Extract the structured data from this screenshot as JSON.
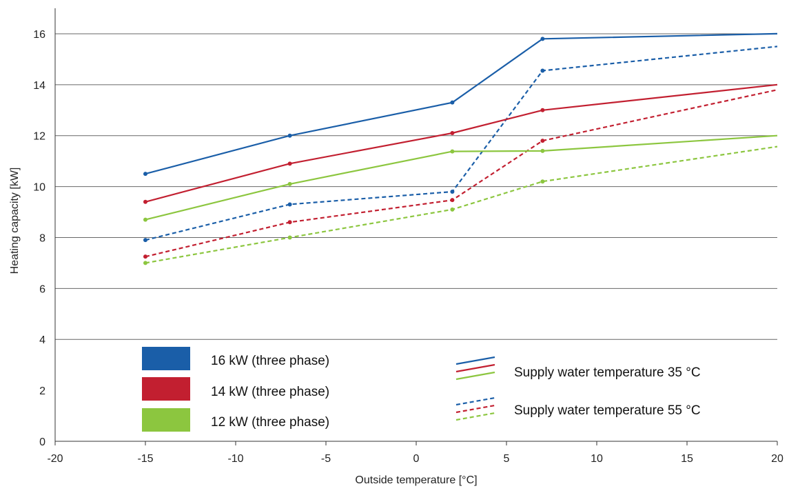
{
  "chart_data": {
    "type": "line",
    "title": "",
    "xlabel": "Outside temperature [°C]",
    "ylabel": "Heating capacity [kW]",
    "xlim": [
      -20,
      20
    ],
    "ylim": [
      0,
      17
    ],
    "xticks": [
      -20,
      -15,
      -10,
      -5,
      0,
      5,
      10,
      15,
      20
    ],
    "yticks": [
      0,
      2,
      4,
      6,
      8,
      10,
      12,
      14,
      16
    ],
    "grid": "horizontal at 4, 6, 8, 10, 12, 14, 16",
    "legend_placement": "bottom",
    "models": [
      {
        "label": "16 kW (three phase)",
        "color": "#1a5ea8"
      },
      {
        "label": "14 kW (three phase)",
        "color": "#c21f30"
      },
      {
        "label": "12 kW (three phase)",
        "color": "#8cc63f"
      }
    ],
    "line_styles": [
      {
        "label": "Supply water temperature 35 °C",
        "dash": "solid"
      },
      {
        "label": "Supply water temperature 55 °C",
        "dash": "dashed"
      }
    ],
    "series": [
      {
        "model": 0,
        "style": 0,
        "points": [
          [
            -15,
            10.5
          ],
          [
            -7,
            12.0
          ],
          [
            2,
            13.3
          ],
          [
            7,
            15.8
          ],
          [
            20,
            16.0
          ]
        ]
      },
      {
        "model": 1,
        "style": 0,
        "points": [
          [
            -15,
            9.4
          ],
          [
            -7,
            10.9
          ],
          [
            2,
            12.1
          ],
          [
            7,
            13.0
          ],
          [
            20,
            14.0
          ]
        ]
      },
      {
        "model": 2,
        "style": 0,
        "points": [
          [
            -15,
            8.7
          ],
          [
            -7,
            10.1
          ],
          [
            2,
            11.38
          ],
          [
            7,
            11.4
          ],
          [
            20,
            12.0
          ]
        ]
      },
      {
        "model": 0,
        "style": 1,
        "points": [
          [
            -15,
            7.9
          ],
          [
            -7,
            9.3
          ],
          [
            2,
            9.8
          ],
          [
            7,
            14.55
          ],
          [
            20,
            15.5
          ]
        ]
      },
      {
        "model": 1,
        "style": 1,
        "points": [
          [
            -15,
            7.25
          ],
          [
            -7,
            8.6
          ],
          [
            2,
            9.47
          ],
          [
            7,
            11.8
          ],
          [
            20,
            13.8
          ]
        ]
      },
      {
        "model": 2,
        "style": 1,
        "points": [
          [
            -15,
            7.0
          ],
          [
            -7,
            8.0
          ],
          [
            2,
            9.1
          ],
          [
            7,
            10.2
          ],
          [
            20,
            11.57
          ]
        ]
      }
    ]
  }
}
